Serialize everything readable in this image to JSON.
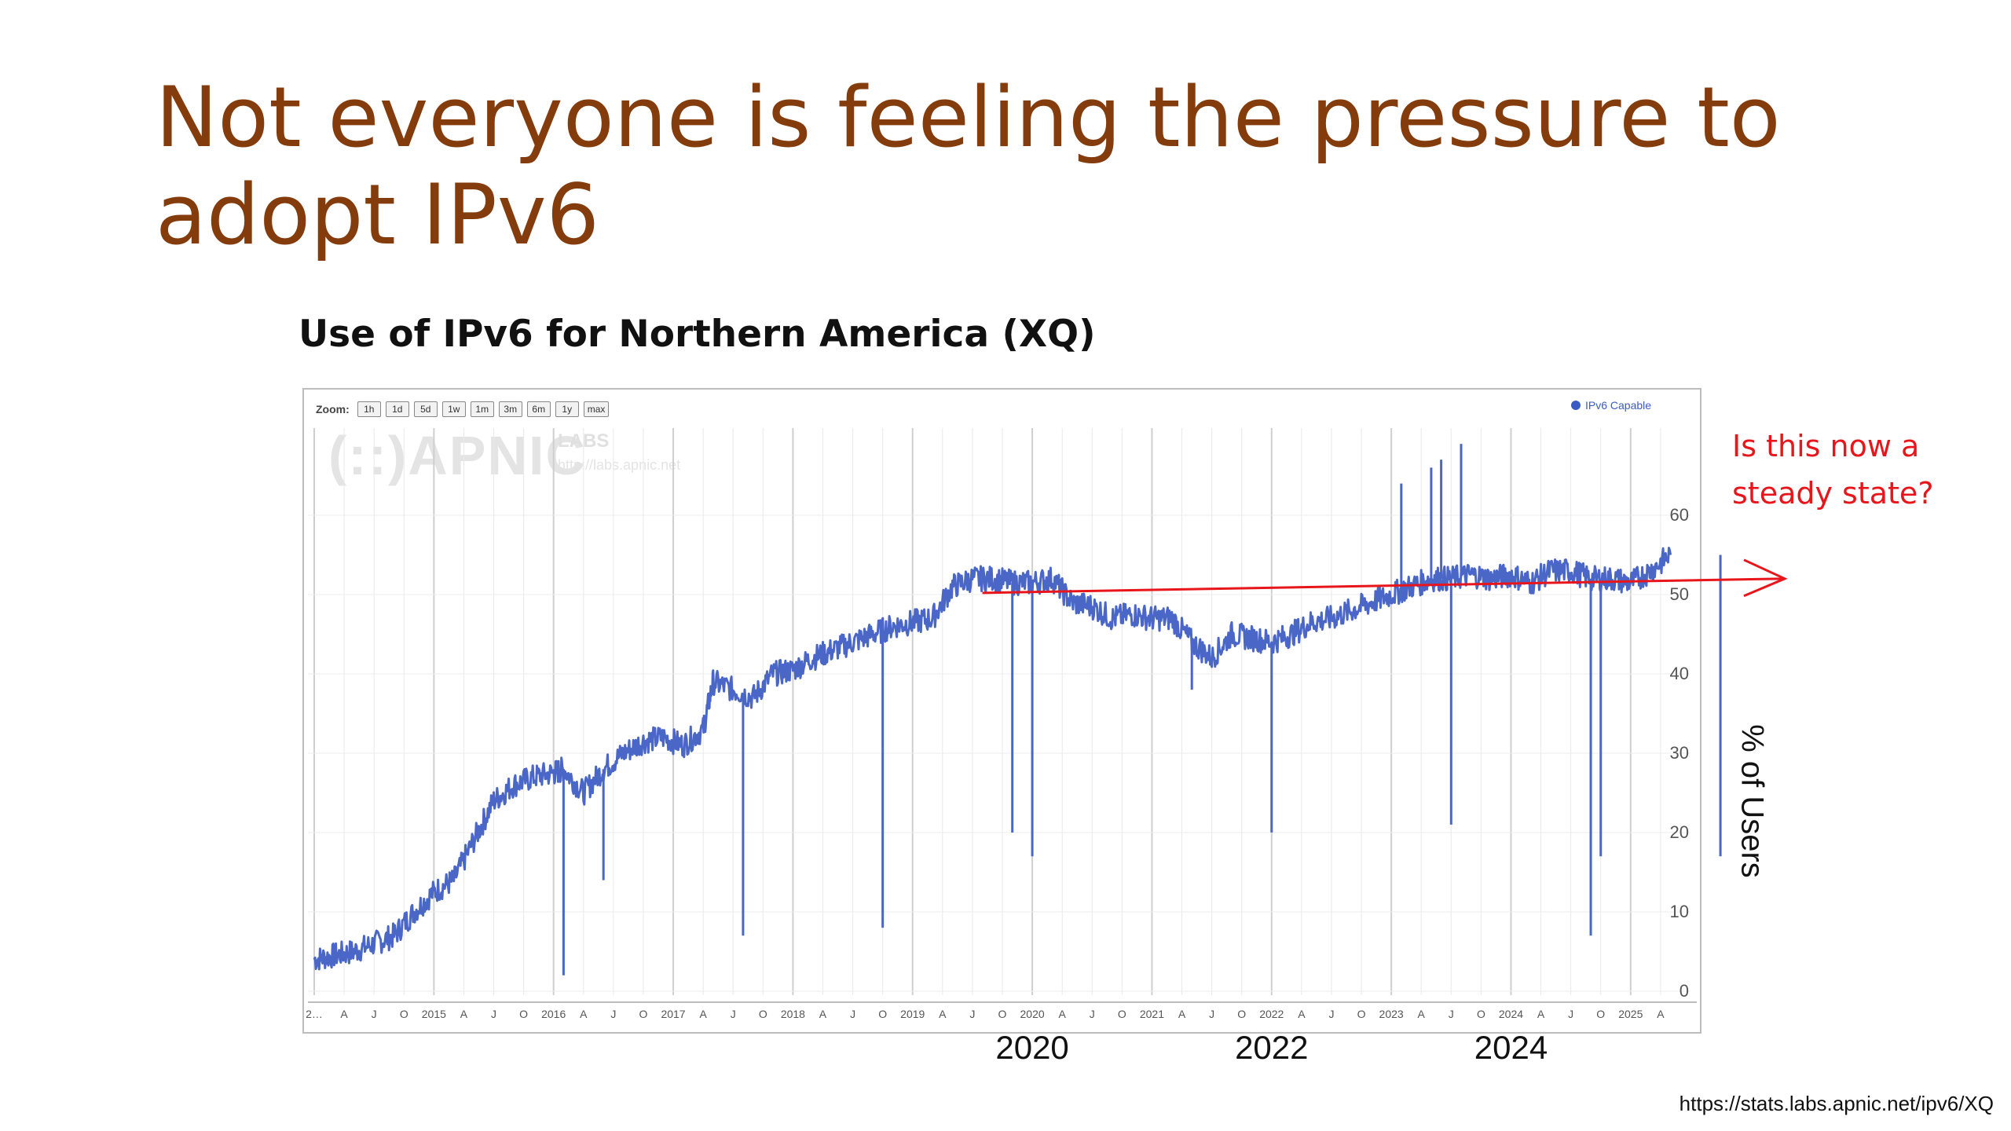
{
  "slide": {
    "title": "Not everyone is feeling the pressure to adopt IPv6",
    "source": "https://stats.labs.apnic.net/ipv6/XQ"
  },
  "chart_toolbar": {
    "zoom_label": "Zoom:",
    "zoom_options": [
      "1h",
      "1d",
      "5d",
      "1w",
      "1m",
      "3m",
      "6m",
      "1y",
      "max"
    ],
    "legend": "IPv6 Capable"
  },
  "watermark": {
    "logo": "(::)APNIC",
    "sub": "LABS",
    "url": "http://labs.apnic.net"
  },
  "annotation": {
    "text_line1": "Is this now a",
    "text_line2": "steady state?",
    "ylabel": "% of Users",
    "year_labels": [
      "2020",
      "2022",
      "2024"
    ],
    "color": "#e8151b"
  },
  "chart_data": {
    "type": "line",
    "title": "Use of IPv6 for Northern America (XQ)",
    "xlabel": "",
    "ylabel": "",
    "ylim": [
      0,
      70
    ],
    "yticks": [
      0,
      10,
      20,
      30,
      40,
      50,
      60
    ],
    "grid": true,
    "legend_position": "top-right",
    "x_tick_labels": [
      "2…",
      "A",
      "J",
      "O",
      "2015",
      "A",
      "J",
      "O",
      "2016",
      "A",
      "J",
      "O",
      "2017",
      "A",
      "J",
      "O",
      "2018",
      "A",
      "J",
      "O",
      "2019",
      "A",
      "J",
      "O",
      "2020",
      "A",
      "J",
      "O",
      "2021",
      "A",
      "J",
      "O",
      "2022",
      "A",
      "J",
      "O",
      "2023",
      "A",
      "J",
      "O",
      "2024",
      "A",
      "J",
      "O",
      "2025",
      "A"
    ],
    "series": [
      {
        "name": "IPv6 Capable",
        "color": "#4a67c8",
        "points": [
          [
            "2014-01",
            4
          ],
          [
            "2014-03",
            4.5
          ],
          [
            "2014-05",
            5
          ],
          [
            "2014-07",
            6
          ],
          [
            "2014-09",
            7
          ],
          [
            "2014-11",
            10
          ],
          [
            "2015-01",
            12.5
          ],
          [
            "2015-03",
            14
          ],
          [
            "2015-05",
            19
          ],
          [
            "2015-07",
            24
          ],
          [
            "2015-09",
            26
          ],
          [
            "2015-11",
            27
          ],
          [
            "2016-01",
            27.5
          ],
          [
            "2016-02",
            28
          ],
          [
            "2016-04",
            25
          ],
          [
            "2016-06",
            28
          ],
          [
            "2016-08",
            30
          ],
          [
            "2016-10",
            31.5
          ],
          [
            "2016-12",
            32
          ],
          [
            "2017-02",
            31
          ],
          [
            "2017-04",
            33
          ],
          [
            "2017-05",
            39
          ],
          [
            "2017-07",
            38
          ],
          [
            "2017-09",
            37
          ],
          [
            "2017-11",
            40
          ],
          [
            "2018-01",
            40.5
          ],
          [
            "2018-03",
            42
          ],
          [
            "2018-05",
            43
          ],
          [
            "2018-07",
            44
          ],
          [
            "2018-09",
            45
          ],
          [
            "2018-11",
            46
          ],
          [
            "2019-01",
            46.5
          ],
          [
            "2019-03",
            47
          ],
          [
            "2019-05",
            51
          ],
          [
            "2019-07",
            52
          ],
          [
            "2019-09",
            52
          ],
          [
            "2019-11",
            51.5
          ],
          [
            "2020-01",
            51.5
          ],
          [
            "2020-03",
            52
          ],
          [
            "2020-05",
            49
          ],
          [
            "2020-07",
            48.5
          ],
          [
            "2020-09",
            47
          ],
          [
            "2020-11",
            47.5
          ],
          [
            "2021-01",
            47
          ],
          [
            "2021-03",
            47
          ],
          [
            "2021-05",
            44
          ],
          [
            "2021-07",
            42
          ],
          [
            "2021-09",
            45
          ],
          [
            "2021-11",
            44.5
          ],
          [
            "2022-01",
            44
          ],
          [
            "2022-03",
            45
          ],
          [
            "2022-05",
            46.5
          ],
          [
            "2022-07",
            47
          ],
          [
            "2022-09",
            48
          ],
          [
            "2022-11",
            49
          ],
          [
            "2023-01",
            50
          ],
          [
            "2023-03",
            51
          ],
          [
            "2023-05",
            52
          ],
          [
            "2023-07",
            52
          ],
          [
            "2023-09",
            52.5
          ],
          [
            "2023-11",
            52
          ],
          [
            "2024-01",
            52.5
          ],
          [
            "2024-03",
            51.5
          ],
          [
            "2024-05",
            53
          ],
          [
            "2024-07",
            53
          ],
          [
            "2024-09",
            52
          ],
          [
            "2024-11",
            52
          ],
          [
            "2025-01",
            51.5
          ],
          [
            "2025-03",
            53
          ],
          [
            "2025-05",
            55
          ]
        ],
        "dips": [
          [
            "2016-02",
            2
          ],
          [
            "2016-06",
            14
          ],
          [
            "2017-08",
            7
          ],
          [
            "2018-10",
            8
          ],
          [
            "2019-11",
            20
          ],
          [
            "2020-01",
            17
          ],
          [
            "2021-05",
            38
          ],
          [
            "2022-01",
            20
          ],
          [
            "2023-07",
            21
          ],
          [
            "2024-09",
            7
          ],
          [
            "2024-10",
            17
          ],
          [
            "2025-10",
            17
          ]
        ],
        "spikes": [
          [
            "2023-02",
            64
          ],
          [
            "2023-05",
            66
          ],
          [
            "2023-06",
            67
          ],
          [
            "2023-08",
            69
          ]
        ]
      }
    ],
    "steady_state_level": 51
  }
}
